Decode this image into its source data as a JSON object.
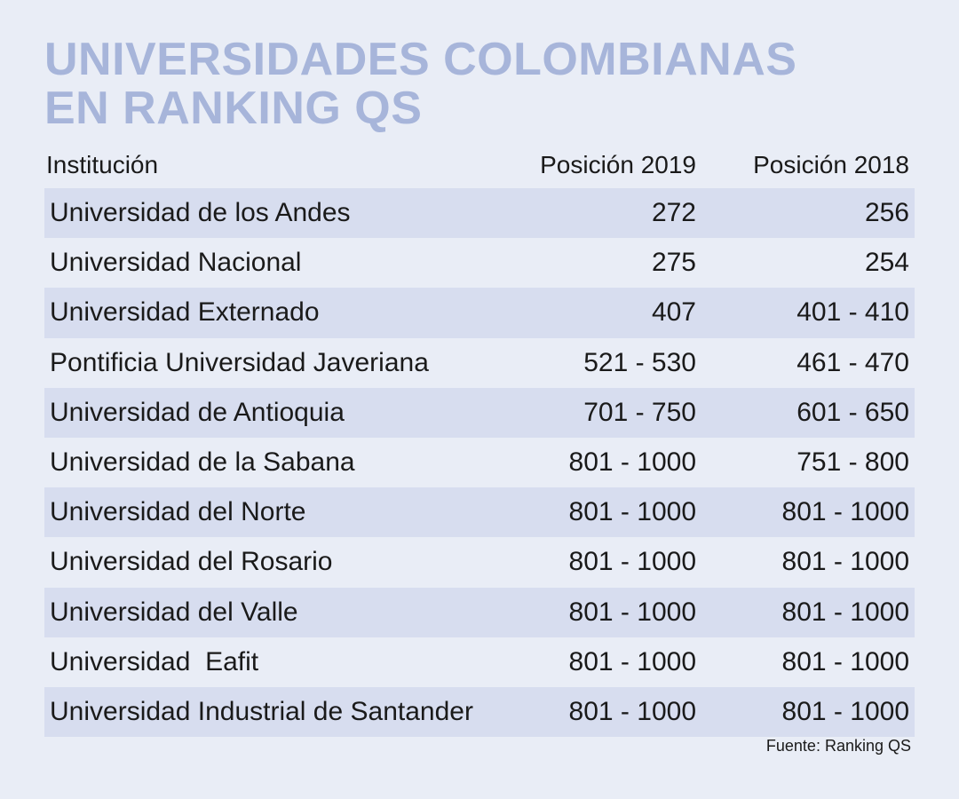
{
  "title_lines": [
    "UNIVERSIDADES COLOMBIANAS",
    "EN RANKING QS"
  ],
  "colors": {
    "background": "#e9edf6",
    "title": "#a7b5da",
    "row_shade": "#d7ddef"
  },
  "chart_data": {
    "type": "table",
    "columns": [
      "Institución",
      "Posición 2019",
      "Posición 2018"
    ],
    "rows": [
      [
        "Universidad de los Andes",
        "272",
        "256"
      ],
      [
        "Universidad Nacional",
        "275",
        "254"
      ],
      [
        "Universidad Externado",
        "407",
        "401 - 410"
      ],
      [
        "Pontificia Universidad Javeriana",
        "521 - 530",
        "461 - 470"
      ],
      [
        "Universidad de Antioquia",
        "701 - 750",
        "601 - 650"
      ],
      [
        "Universidad de la Sabana",
        "801 - 1000",
        "751 - 800"
      ],
      [
        "Universidad del Norte",
        "801 - 1000",
        "801 - 1000"
      ],
      [
        "Universidad del Rosario",
        "801 - 1000",
        "801 - 1000"
      ],
      [
        "Universidad del Valle",
        "801 - 1000",
        "801 - 1000"
      ],
      [
        "Universidad  Eafit",
        "801 - 1000",
        "801 - 1000"
      ],
      [
        "Universidad Industrial de Santander",
        "801 - 1000",
        "801 - 1000"
      ]
    ]
  },
  "source": "Fuente: Ranking QS"
}
